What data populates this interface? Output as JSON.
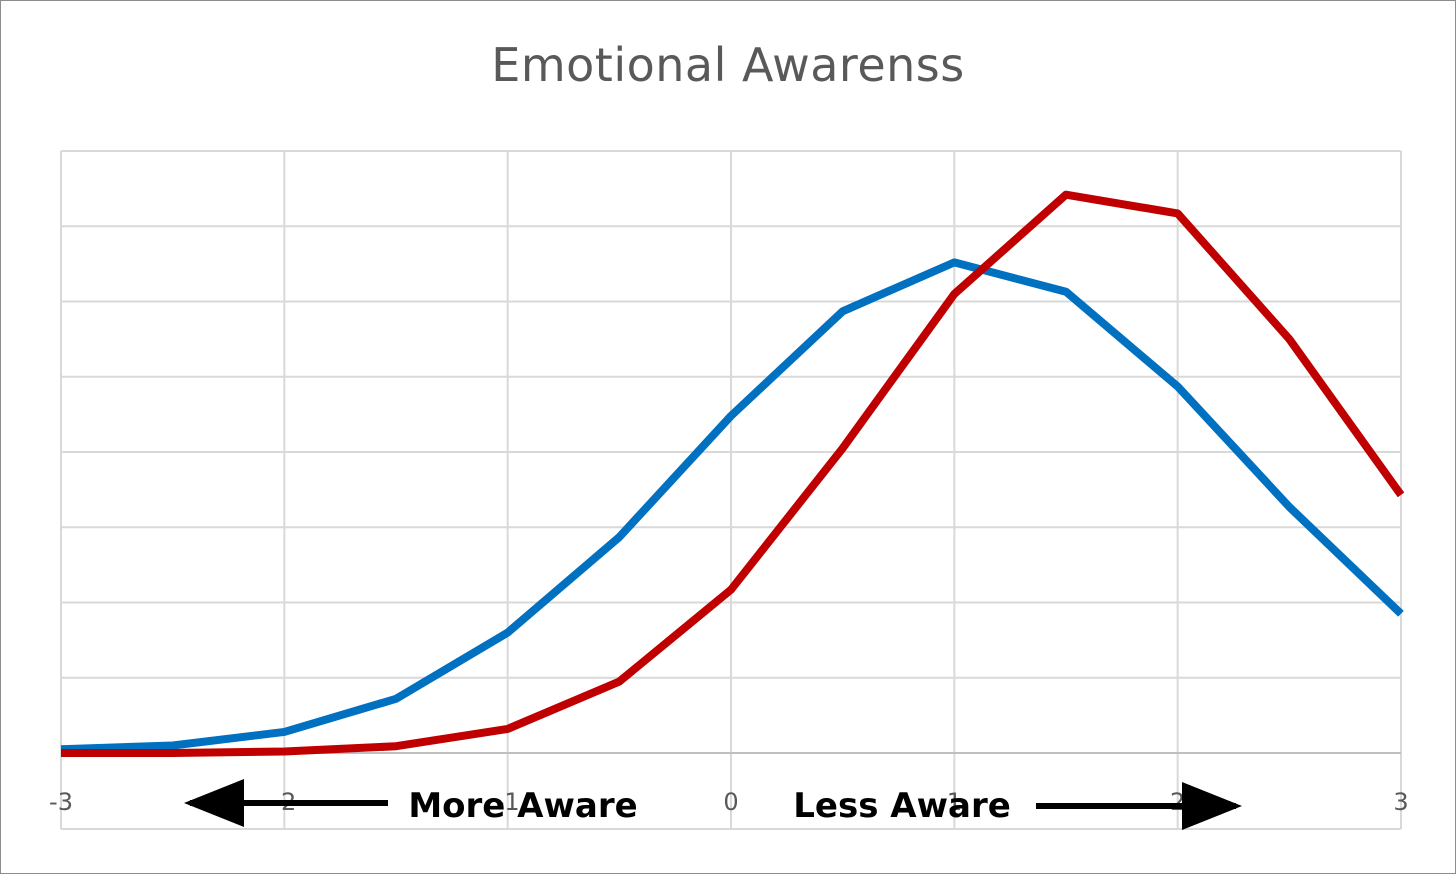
{
  "chart_data": {
    "type": "line",
    "title": "Emotional Awarenss",
    "xlabel": "",
    "ylabel": "",
    "xlim": [
      -3,
      3
    ],
    "ylim": [
      0,
      8
    ],
    "x": [
      -3,
      -2.5,
      -2,
      -1.5,
      -1,
      -0.5,
      0,
      0.5,
      1,
      1.5,
      2,
      2.5,
      3
    ],
    "x_tick_labels": [
      "-3",
      "-2",
      "-1",
      "0",
      "1",
      "2",
      "3"
    ],
    "y_tick_labels_visible": false,
    "grid": true,
    "legend": "none",
    "series": [
      {
        "color": "#0070c0",
        "values": [
          0.05,
          0.1,
          0.28,
          0.72,
          1.6,
          2.87,
          4.48,
          5.87,
          6.52,
          6.13,
          4.87,
          3.27,
          1.85
        ]
      },
      {
        "color": "#c00000",
        "values": [
          0.0,
          0.0,
          0.02,
          0.09,
          0.32,
          0.95,
          2.17,
          4.05,
          6.1,
          7.42,
          7.17,
          5.5,
          3.43
        ]
      }
    ],
    "annotations": [
      {
        "text": "More Aware",
        "arrow": "left"
      },
      {
        "text": "Less Aware",
        "arrow": "right"
      }
    ]
  }
}
